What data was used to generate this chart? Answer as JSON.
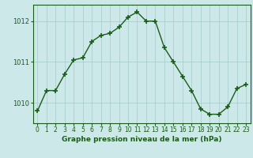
{
  "x_values": [
    0,
    1,
    2,
    3,
    4,
    5,
    6,
    7,
    8,
    9,
    10,
    11,
    12,
    13,
    14,
    15,
    16,
    17,
    18,
    19,
    20,
    21,
    22,
    23
  ],
  "y_values": [
    1009.8,
    1010.3,
    1010.3,
    1010.7,
    1011.05,
    1011.1,
    1011.5,
    1011.65,
    1011.7,
    1011.85,
    1012.1,
    1012.22,
    1012.0,
    1012.0,
    1011.35,
    1011.0,
    1010.65,
    1010.3,
    1009.85,
    1009.72,
    1009.72,
    1009.9,
    1010.35,
    1010.45
  ],
  "line_color": "#1a5c1a",
  "marker": "+",
  "marker_size": 5,
  "marker_lw": 1.2,
  "line_width": 1.0,
  "bg_color": "#cce8e8",
  "grid_color": "#aacece",
  "xlabel": "Graphe pression niveau de la mer (hPa)",
  "xlabel_color": "#1a5c1a",
  "tick_color": "#1a5c1a",
  "spine_color": "#1a5c1a",
  "ylim": [
    1009.5,
    1012.4
  ],
  "yticks": [
    1010,
    1011,
    1012
  ],
  "xlim": [
    -0.5,
    23.5
  ],
  "xticks": [
    0,
    1,
    2,
    3,
    4,
    5,
    6,
    7,
    8,
    9,
    10,
    11,
    12,
    13,
    14,
    15,
    16,
    17,
    18,
    19,
    20,
    21,
    22,
    23
  ],
  "xtick_labels": [
    "0",
    "1",
    "2",
    "3",
    "4",
    "5",
    "6",
    "7",
    "8",
    "9",
    "10",
    "11",
    "12",
    "13",
    "14",
    "15",
    "16",
    "17",
    "18",
    "19",
    "20",
    "21",
    "22",
    "23"
  ],
  "tick_fontsize": 5.5,
  "ylabel_fontsize": 6,
  "xlabel_fontsize": 6.5
}
